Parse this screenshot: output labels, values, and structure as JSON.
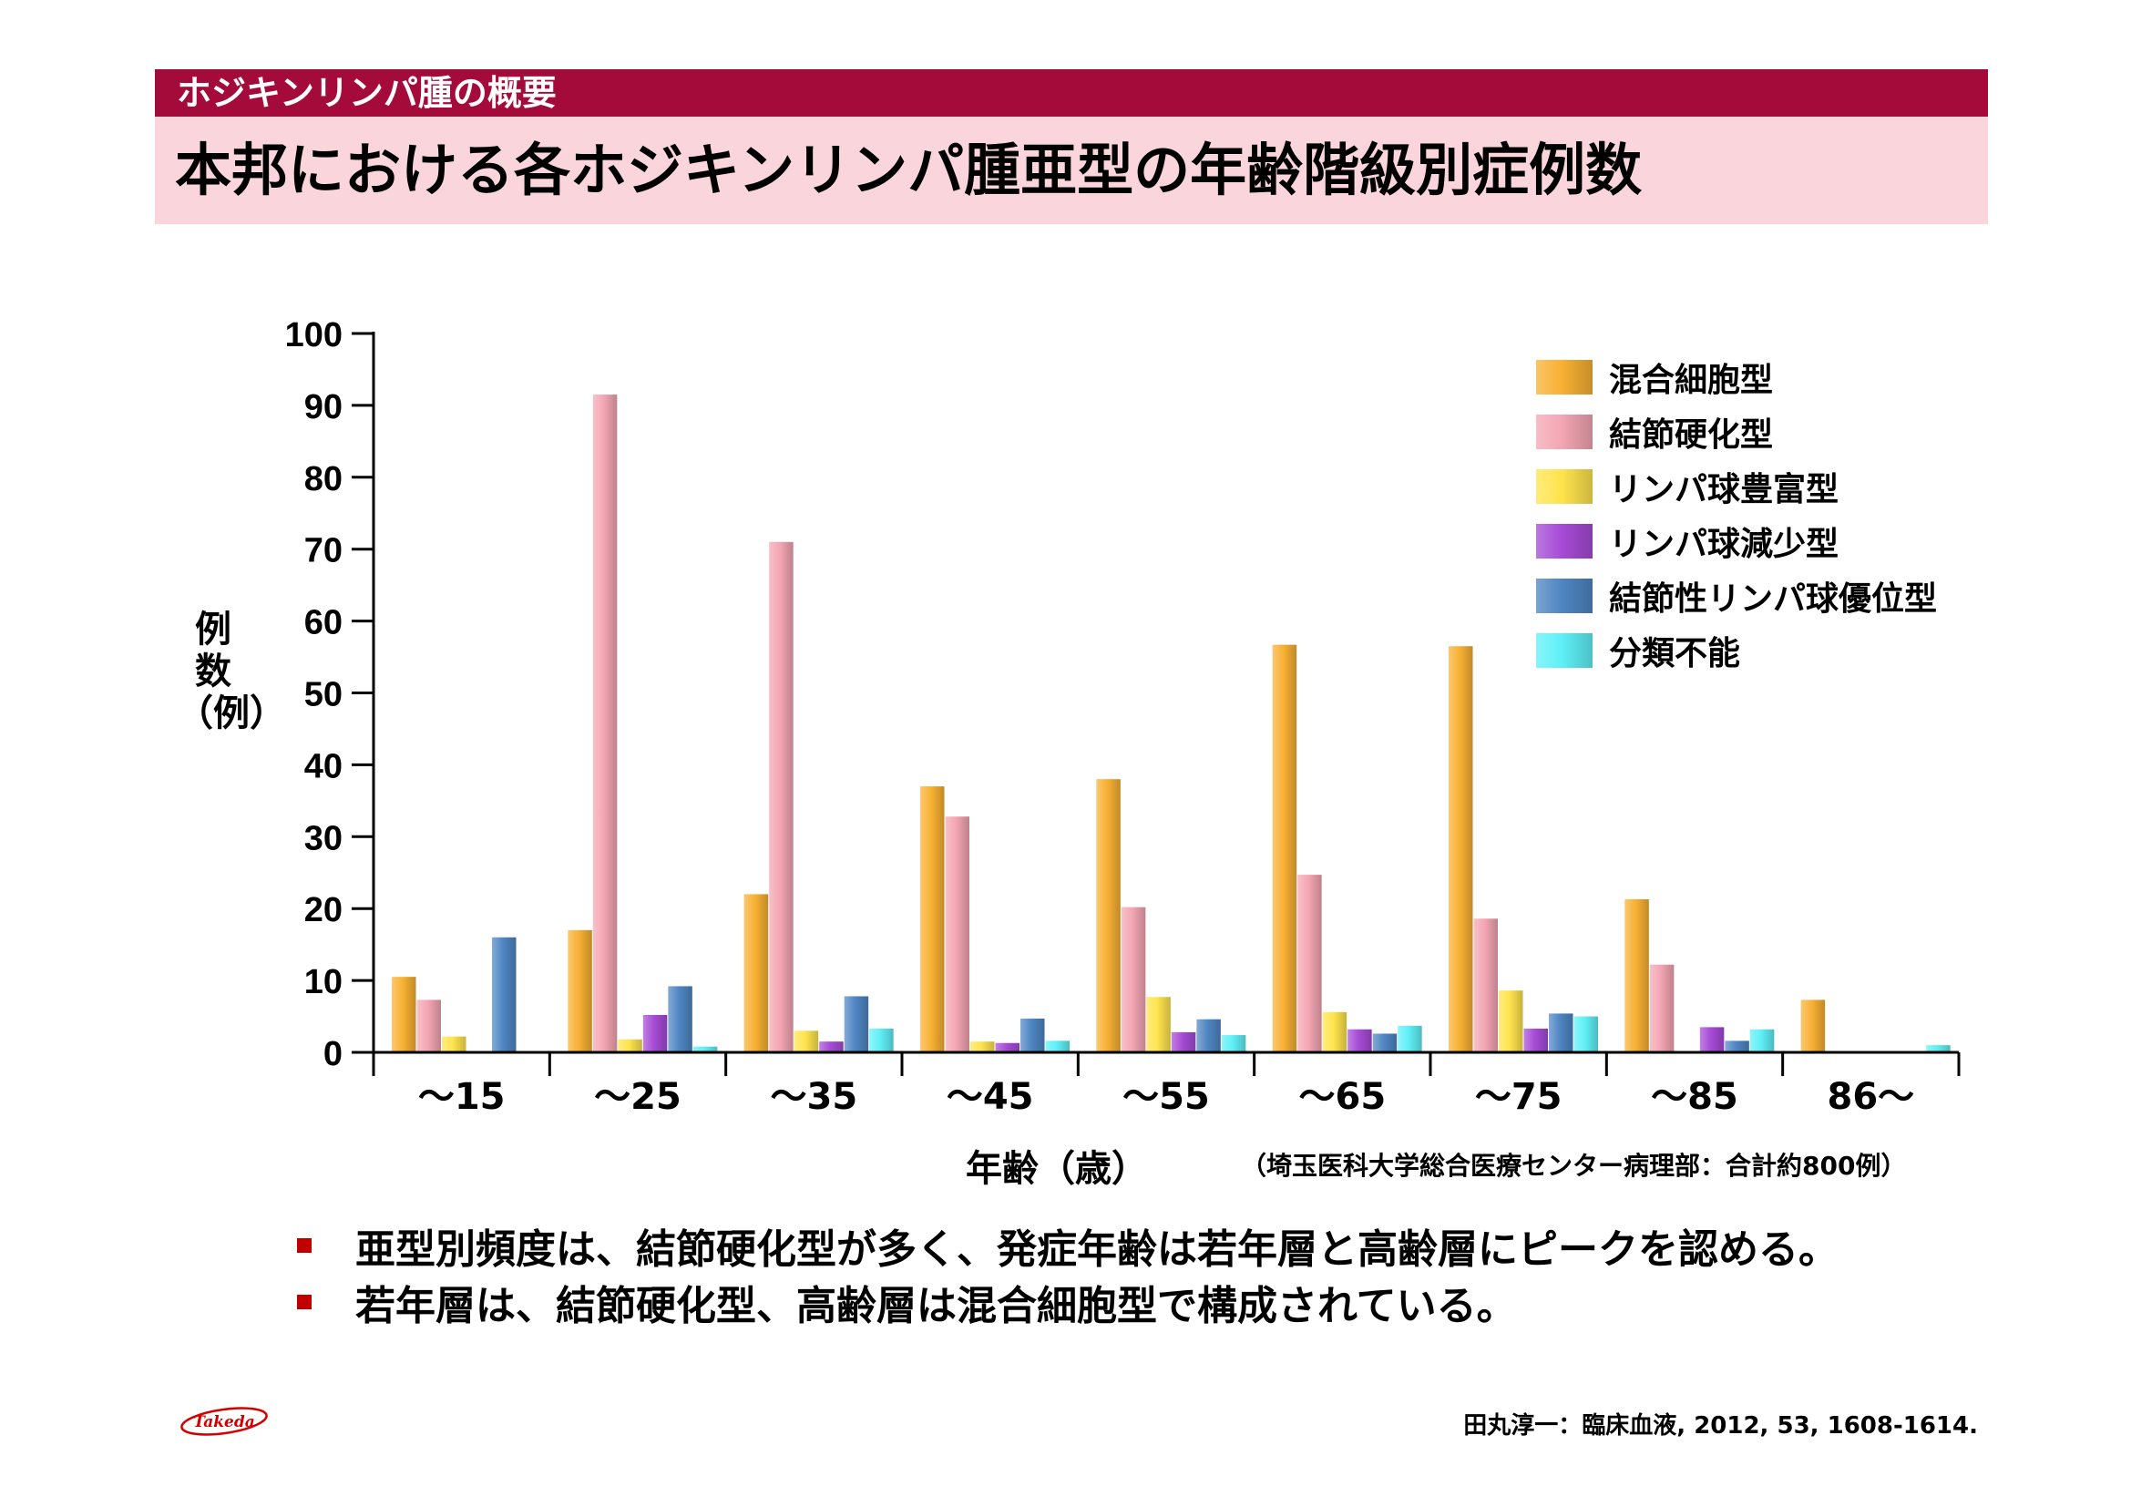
{
  "header": {
    "section": "ホジキンリンパ腫の概要",
    "title": "本邦における各ホジキンリンパ腫亜型の年齢階級別症例数"
  },
  "chart_data": {
    "type": "bar",
    "categories": [
      "～15",
      "～25",
      "～35",
      "～45",
      "～55",
      "～65",
      "～75",
      "～85",
      "86～"
    ],
    "series": [
      {
        "name": "混合細胞型",
        "color": "#f8b133",
        "values": [
          10.5,
          17,
          22,
          37,
          38,
          56.7,
          56.5,
          21.3,
          7.3
        ]
      },
      {
        "name": "結節硬化型",
        "color": "#f4a6b3",
        "values": [
          7.3,
          91.5,
          71,
          32.8,
          20.2,
          24.7,
          18.6,
          12.2,
          0
        ]
      },
      {
        "name": "リンパ球豊富型",
        "color": "#ffe44d",
        "values": [
          2.2,
          1.8,
          3,
          1.5,
          7.7,
          5.6,
          8.6,
          0,
          0
        ]
      },
      {
        "name": "リンパ球減少型",
        "color": "#a64bd6",
        "values": [
          0,
          5.2,
          1.5,
          1.3,
          2.8,
          3.2,
          3.3,
          3.5,
          0
        ]
      },
      {
        "name": "結節性リンパ球優位型",
        "color": "#4f86c3",
        "values": [
          16,
          9.2,
          7.8,
          4.7,
          4.6,
          2.6,
          5.4,
          1.6,
          0
        ]
      },
      {
        "name": "分類不能",
        "color": "#5ff0f7",
        "values": [
          0,
          0.8,
          3.3,
          1.6,
          2.4,
          3.7,
          5,
          3.2,
          1
        ]
      }
    ],
    "y_ticks": [
      "0",
      "10",
      "20",
      "30",
      "40",
      "50",
      "60",
      "70",
      "80",
      "90",
      "100"
    ],
    "ylim": [
      0,
      100
    ],
    "ylabel_lines": [
      "例",
      "数",
      "（例）"
    ],
    "xlabel": "年齢（歳）",
    "legend_position": "top-right",
    "grid": false
  },
  "source_note": "（埼玉医科大学総合医療センター病理部：合計約800例）",
  "bullets": [
    "亜型別頻度は、結節硬化型が多く、発症年齢は若年層と高齢層にピークを認める。",
    "若年層は、結節硬化型、高齢層は混合細胞型で構成されている。"
  ],
  "logo": {
    "text": "Takeda",
    "color": "#d40000"
  },
  "citation": "田丸淳一：臨床血液, 2012, 53, 1608-1614."
}
